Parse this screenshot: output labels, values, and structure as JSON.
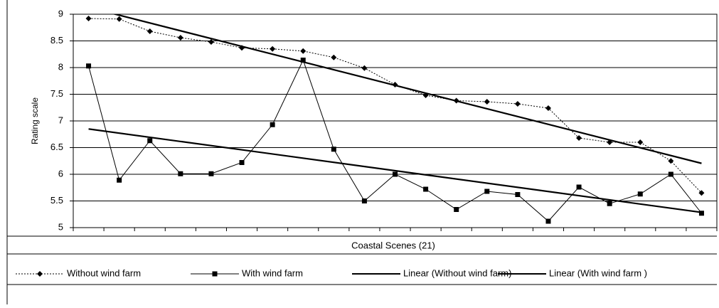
{
  "chart_data": {
    "type": "line",
    "x_label": "Coastal Scenes (21)",
    "y_label": "Rating scale",
    "categories": [
      null,
      null,
      null,
      null,
      null,
      null,
      null,
      null,
      null,
      null,
      null,
      null,
      null,
      null,
      null,
      null,
      null,
      null,
      null,
      null,
      null
    ],
    "ylim": [
      5,
      9
    ],
    "yticks": [
      5,
      5.5,
      6,
      6.5,
      7,
      7.5,
      8,
      8.5,
      9
    ],
    "grid": true,
    "series": [
      {
        "name": "Without wind farm",
        "color": "#000000",
        "line_style": "dotted",
        "marker": "diamond",
        "values": [
          8.92,
          8.91,
          8.68,
          8.56,
          8.48,
          8.37,
          8.35,
          8.31,
          8.19,
          7.99,
          7.68,
          7.48,
          7.38,
          7.36,
          7.32,
          7.24,
          6.68,
          6.6,
          6.6,
          6.25,
          5.65
        ]
      },
      {
        "name": "With wind farm",
        "color": "#000000",
        "line_style": "solid",
        "marker": "square",
        "values": [
          8.03,
          5.89,
          6.63,
          6.01,
          6.01,
          6.22,
          6.93,
          8.14,
          6.47,
          5.5,
          6.0,
          5.72,
          5.34,
          5.68,
          5.62,
          5.12,
          5.76,
          5.45,
          5.63,
          6.0,
          5.27
        ]
      },
      {
        "name": "Linear (Without wind farm)",
        "color": "#000000",
        "trendline": "linear",
        "of": 0
      },
      {
        "name": "Linear (With wind farm )",
        "color": "#000000",
        "trendline": "linear",
        "of": 1
      }
    ]
  }
}
